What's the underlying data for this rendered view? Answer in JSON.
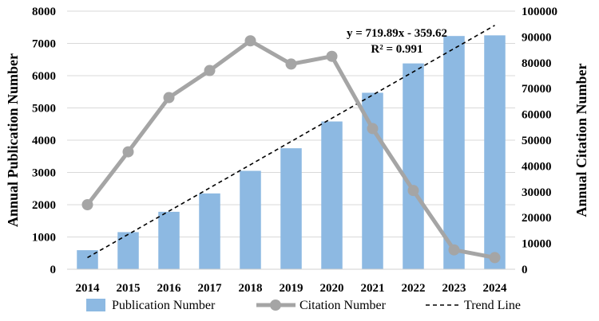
{
  "chart_data": {
    "type": "bar+line",
    "categories": [
      "2014",
      "2015",
      "2016",
      "2017",
      "2018",
      "2019",
      "2020",
      "2021",
      "2022",
      "2023",
      "2024"
    ],
    "series": [
      {
        "name": "Publication Number",
        "type": "bar",
        "axis": "left",
        "color": "#8db9e2",
        "values": [
          590,
          1150,
          1780,
          2350,
          3050,
          3750,
          4580,
          5470,
          6380,
          7230,
          7250
        ]
      },
      {
        "name": "Citation Number",
        "type": "line",
        "axis": "right",
        "color": "#a5a5a5",
        "values": [
          25000,
          45500,
          66500,
          77000,
          88500,
          79500,
          82500,
          54500,
          30500,
          7500,
          4500
        ]
      },
      {
        "name": "Trend Line",
        "type": "trend",
        "axis": "left",
        "color": "#000000",
        "slope": 719.89,
        "intercept": -359.62
      }
    ],
    "yleft": {
      "label": "Annual Publication Number",
      "min": 0,
      "max": 8000,
      "step": 1000,
      "ticks": [
        "0",
        "1000",
        "2000",
        "3000",
        "4000",
        "5000",
        "6000",
        "7000",
        "8000"
      ]
    },
    "yright": {
      "label": "Annual Citation Number",
      "min": 0,
      "max": 100000,
      "step": 10000,
      "ticks": [
        "0",
        "10000",
        "20000",
        "30000",
        "40000",
        "50000",
        "60000",
        "70000",
        "80000",
        "90000",
        "100000"
      ]
    },
    "equation": "y = 719.89x - 359.62",
    "r_squared": "R² = 0.991",
    "legend": [
      "Publication Number",
      "Citation Number",
      "Trend Line"
    ],
    "grid": true
  }
}
